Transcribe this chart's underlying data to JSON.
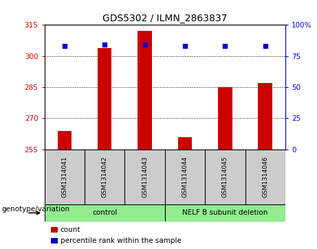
{
  "title": "GDS5302 / ILMN_2863837",
  "samples": [
    "GSM1314041",
    "GSM1314042",
    "GSM1314043",
    "GSM1314044",
    "GSM1314045",
    "GSM1314046"
  ],
  "counts": [
    264,
    304,
    312,
    261,
    285,
    287
  ],
  "percentile_ranks": [
    83,
    84,
    84,
    83,
    83,
    83
  ],
  "ylim_left": [
    255,
    315
  ],
  "ylim_right": [
    0,
    100
  ],
  "yticks_left": [
    255,
    270,
    285,
    300,
    315
  ],
  "yticks_right": [
    0,
    25,
    50,
    75,
    100
  ],
  "bar_color": "#cc0000",
  "dot_color": "#0000cc",
  "bar_width": 0.35,
  "group_boxes": [
    {
      "xmin": -0.5,
      "xmax": 2.5,
      "label": "control"
    },
    {
      "xmin": 2.5,
      "xmax": 5.5,
      "label": "NELF B subunit deletion"
    }
  ],
  "green_color": "#90ee90",
  "sample_box_color": "#cccccc",
  "genotype_label": "genotype/variation",
  "legend_count_label": "count",
  "legend_percentile_label": "percentile rank within the sample",
  "title_fontsize": 10,
  "tick_fontsize": 7.5,
  "sample_fontsize": 6.5,
  "group_fontsize": 7.5,
  "legend_fontsize": 7.5,
  "genotype_fontsize": 7.5
}
